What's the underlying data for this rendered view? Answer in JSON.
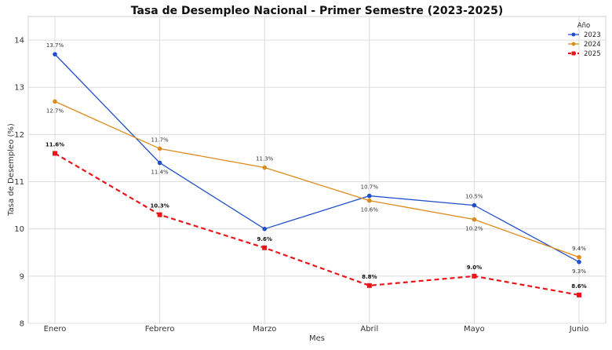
{
  "chart_data": {
    "type": "line",
    "title": "Tasa de Desempleo Nacional - Primer Semestre (2023-2025)",
    "xlabel": "Mes",
    "ylabel": "Tasa de Desempleo (%)",
    "categories": [
      "Enero",
      "Febrero",
      "Marzo",
      "Abril",
      "Mayo",
      "Junio"
    ],
    "ylim": [
      8,
      14.5
    ],
    "yticks": [
      8,
      9,
      10,
      11,
      12,
      13,
      14
    ],
    "grid": true,
    "legend": {
      "title": "Año",
      "placement": "top-right"
    },
    "series": [
      {
        "name": "2023",
        "color": "#1f4fc9",
        "style": "solid",
        "marker": "circle",
        "values": [
          13.7,
          11.4,
          10.0,
          10.7,
          10.5,
          9.3
        ],
        "labels": [
          "13.7%",
          "11.4%",
          "",
          "10.7%",
          "10.5%",
          "9.3%"
        ]
      },
      {
        "name": "2024",
        "color": "#dd8a1c",
        "style": "solid",
        "marker": "circle",
        "values": [
          12.7,
          11.7,
          11.3,
          10.6,
          10.2,
          9.4
        ],
        "labels": [
          "12.7%",
          "11.7%",
          "11.3%",
          "10.6%",
          "10.2%",
          "9.4%"
        ]
      },
      {
        "name": "2025",
        "color": "#e8161b",
        "style": "dashed",
        "marker": "square",
        "values": [
          11.6,
          10.3,
          9.6,
          8.8,
          9.0,
          8.6
        ],
        "labels": [
          "11.6%",
          "10.3%",
          "9.6%",
          "8.8%",
          "9.0%",
          "8.6%"
        ]
      }
    ]
  }
}
